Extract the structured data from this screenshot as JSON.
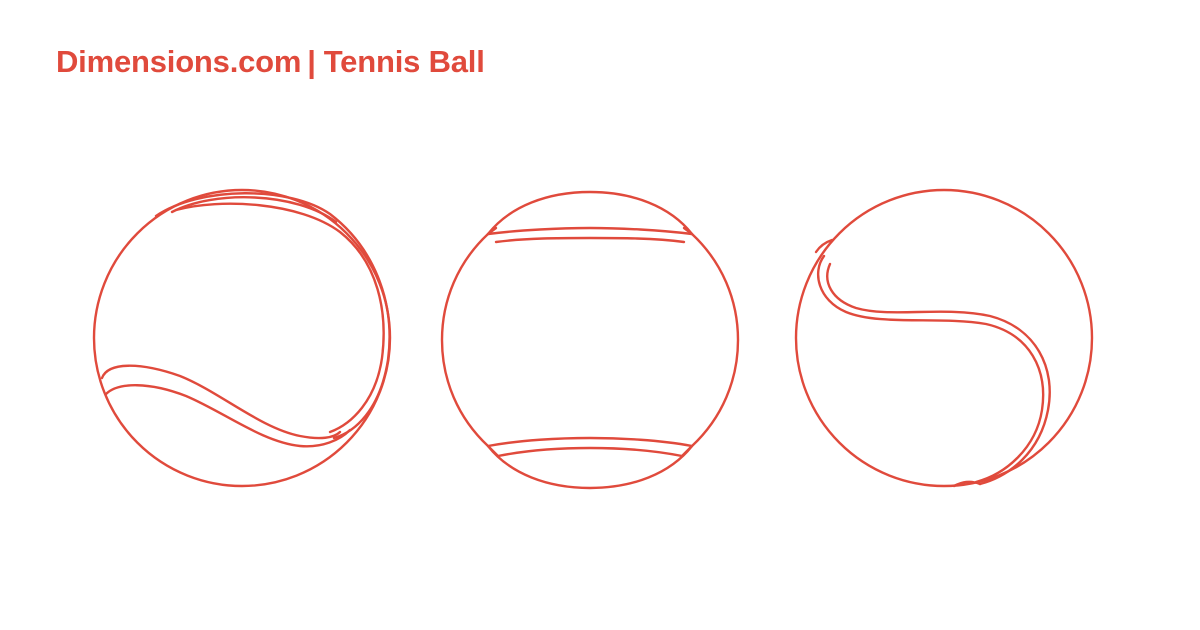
{
  "header": {
    "brand": "Dimensions.com",
    "separator": "|",
    "title": "Tennis Ball"
  },
  "colors": {
    "accent": "#e04a3c",
    "background": "#ffffff"
  },
  "views": [
    {
      "id": "side-seam-view"
    },
    {
      "id": "front-view"
    },
    {
      "id": "curve-seam-view"
    }
  ]
}
